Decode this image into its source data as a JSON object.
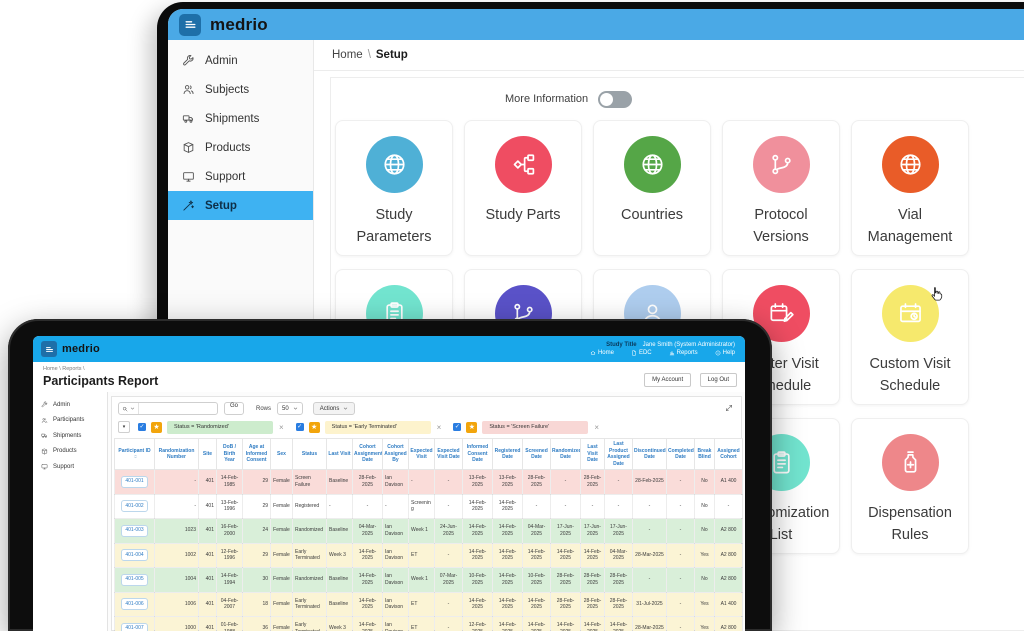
{
  "setup": {
    "logo": "medrio",
    "sidebar": [
      {
        "label": "Admin",
        "icon": "wrench-icon"
      },
      {
        "label": "Subjects",
        "icon": "people-icon"
      },
      {
        "label": "Shipments",
        "icon": "truck-icon"
      },
      {
        "label": "Products",
        "icon": "box-icon"
      },
      {
        "label": "Support",
        "icon": "support-icon"
      },
      {
        "label": "Setup",
        "icon": "wand-icon",
        "active": true
      }
    ],
    "breadcrumb": {
      "home": "Home",
      "sep": "\\",
      "current": "Setup"
    },
    "toggle": {
      "label": "More Information",
      "state": "off"
    },
    "card_rows": [
      [
        {
          "label": "Study Parameters",
          "icon": "globe-icon",
          "color": "#4fb0d6"
        },
        {
          "label": "Study Parts",
          "icon": "flow-icon",
          "color": "#ef4d62"
        },
        {
          "label": "Countries",
          "icon": "globe-icon",
          "color": "#55a647"
        },
        {
          "label": "Protocol Versions",
          "icon": "branch-icon",
          "color": "#f0909c"
        },
        {
          "label": "Vial Management",
          "icon": "globe-icon",
          "color": "#e95c28"
        }
      ],
      [
        {
          "label": "",
          "icon": "clipboard-icon",
          "color": "#72e4cf"
        },
        {
          "label": "",
          "icon": "branch-icon",
          "color": "#5a52c8"
        },
        {
          "label": "",
          "icon": "person-icon",
          "color": "#aecdee"
        },
        {
          "label": "Master Visit Schedule",
          "icon": "calendar-edit-icon",
          "color": "#ef4d62"
        },
        {
          "label": "Custom Visit Schedule",
          "icon": "calendar-icon",
          "color": "#f6e96d"
        }
      ],
      [
        {
          "label": "",
          "icon": "",
          "color": "",
          "hidden": true
        },
        {
          "label": "",
          "icon": "",
          "color": "",
          "hidden": true
        },
        {
          "label": "",
          "icon": "",
          "color": "",
          "hidden": true
        },
        {
          "label": "Randomization List",
          "icon": "clipboard-icon",
          "color": "#72e4cf"
        },
        {
          "label": "Dispensation Rules",
          "icon": "bottle-icon",
          "color": "#ee878a"
        }
      ]
    ]
  },
  "report": {
    "logo": "medrio",
    "topbar": {
      "study_title": "Study Title",
      "user": "Jane Smith (System Administrator)",
      "links": [
        {
          "label": "Home",
          "icon": "home-icon"
        },
        {
          "label": "EDC",
          "icon": "doc-icon"
        },
        {
          "label": "Reports",
          "icon": "chart-icon"
        },
        {
          "label": "Help",
          "icon": "info-icon"
        }
      ]
    },
    "sidebar": [
      {
        "label": "Admin",
        "icon": "wrench-icon"
      },
      {
        "label": "Participants",
        "icon": "people-icon"
      },
      {
        "label": "Shipments",
        "icon": "truck-icon"
      },
      {
        "label": "Products",
        "icon": "box-icon"
      },
      {
        "label": "Support",
        "icon": "support-icon"
      }
    ],
    "breadcrumb": "Home \\ Reports \\",
    "title": "Participants Report",
    "my_account": "My Account",
    "log_out": "Log Out",
    "toolbar": {
      "go": "Go",
      "rows_label": "Rows",
      "rows_value": "50",
      "actions": "Actions"
    },
    "filters": [
      {
        "label": "Status = 'Randomized'",
        "color": "#cdeccd"
      },
      {
        "label": "Status = 'Early Terminated'",
        "color": "#fdf3cd"
      },
      {
        "label": "Status = 'Screen Failure'",
        "color": "#f8d7d5"
      }
    ],
    "table": {
      "columns": [
        "Participant ID",
        "Randomization Number",
        "Site",
        "DoB / Birth Year",
        "Age at Informed Consent",
        "Sex",
        "Status",
        "Last Visit",
        "Cohort Assignment Date",
        "Cohort Assigned By",
        "Expected Visit",
        "Expected Visit Date",
        "Informed Consent Date",
        "Registered Date",
        "Screened Date",
        "Randomized Date",
        "Last Visit Date",
        "Last Product Assigned Date",
        "Discontinued Date",
        "Completed Date",
        "Break Blind",
        "Assigned Cohort"
      ],
      "status_colors": {
        "Screen Failure": "#fadcd9",
        "Registered": "#ffffff",
        "Randomized": "#d9efd9",
        "Early Terminated": "#fbf4d5"
      },
      "rows": [
        [
          "401-001",
          "-",
          "401",
          "14-Feb-1985",
          "29",
          "Female",
          "Screen Failure",
          "Baseline",
          "28-Feb-2025",
          "Ian Davison",
          "-",
          "-",
          "13-Feb-2025",
          "13-Feb-2025",
          "28-Feb-2025",
          "-",
          "28-Feb-2025",
          "-",
          "28-Feb-2025",
          "-",
          "No",
          "A1 400"
        ],
        [
          "401-002",
          "-",
          "401",
          "13-Feb-1996",
          "29",
          "Female",
          "Registered",
          "-",
          "-",
          "-",
          "Screening",
          "-",
          "14-Feb-2025",
          "14-Feb-2025",
          "-",
          "-",
          "-",
          "-",
          "-",
          "-",
          "No",
          "-"
        ],
        [
          "401-003",
          "1023",
          "401",
          "16-Feb-2000",
          "24",
          "Female",
          "Randomized",
          "Baseline",
          "04-Mar-2025",
          "Ian Davison",
          "Week 1",
          "24-Jun-2025",
          "14-Feb-2025",
          "14-Feb-2025",
          "04-Mar-2025",
          "17-Jun-2025",
          "17-Jun-2025",
          "17-Jun-2025",
          "-",
          "-",
          "No",
          "A2 800"
        ],
        [
          "401-004",
          "1002",
          "401",
          "12-Feb-1996",
          "29",
          "Female",
          "Early Terminated",
          "Week 3",
          "14-Feb-2025",
          "Ian Davison",
          "ET",
          "-",
          "14-Feb-2025",
          "14-Feb-2025",
          "14-Feb-2025",
          "14-Feb-2025",
          "14-Feb-2025",
          "04-Mar-2025",
          "28-Mar-2025",
          "-",
          "Yes",
          "A2 800"
        ],
        [
          "401-005",
          "1004",
          "401",
          "14-Feb-1994",
          "30",
          "Female",
          "Randomized",
          "Baseline",
          "14-Feb-2025",
          "Ian Davison",
          "Week 1",
          "07-Mar-2025",
          "10-Feb-2025",
          "14-Feb-2025",
          "10-Feb-2025",
          "28-Feb-2025",
          "28-Feb-2025",
          "28-Feb-2025",
          "-",
          "-",
          "No",
          "A2 800"
        ],
        [
          "401-006",
          "1006",
          "401",
          "04-Feb-2007",
          "18",
          "Female",
          "Early Terminated",
          "Baseline",
          "14-Feb-2025",
          "Ian Davison",
          "ET",
          "-",
          "14-Feb-2025",
          "14-Feb-2025",
          "14-Feb-2025",
          "28-Feb-2025",
          "28-Feb-2025",
          "28-Feb-2025",
          "31-Jul-2025",
          "-",
          "Yes",
          "A1 400"
        ],
        [
          "401-007",
          "1000",
          "401",
          "01-Feb-1988",
          "36",
          "Female",
          "Early Terminated",
          "Week 3",
          "14-Feb-2025",
          "Ian Davison",
          "ET",
          "-",
          "12-Feb-2025",
          "14-Feb-2025",
          "14-Feb-2025",
          "14-Feb-2025",
          "14-Feb-2025",
          "14-Feb-2025",
          "28-Mar-2025",
          "-",
          "Yes",
          "A2 800"
        ]
      ]
    }
  },
  "colors": {
    "report_header_blue": "#18a7ea",
    "setup_header_blue": "#4aa9e6",
    "active_nav_blue": "#3eb2f2",
    "logo_square_blue": "#1e6fa8",
    "header_text_blue": "#2f7cc3"
  }
}
